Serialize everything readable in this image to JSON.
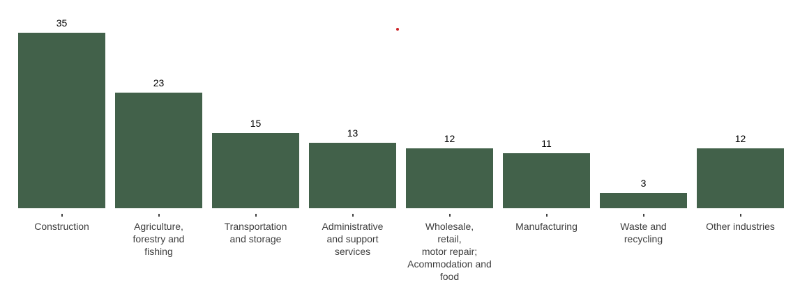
{
  "chart_data": {
    "type": "bar",
    "title": "",
    "xlabel": "",
    "ylabel": "",
    "ylim": [
      0,
      35
    ],
    "grid": false,
    "legend": "none",
    "value_labels_shown": true,
    "categories": [
      "Construction",
      "Agriculture,\nforestry and\nfishing",
      "Transportation\nand storage",
      "Administrative\nand support\nservices",
      "Wholesale,\nretail,\nmotor repair;\nAcommodation and\nfood",
      "Manufacturing",
      "Waste and\nrecycling",
      "Other industries"
    ],
    "values": [
      35,
      23,
      15,
      13,
      12,
      11,
      3,
      12
    ]
  },
  "colors": {
    "background": "#ffffff",
    "bar": "#42614a",
    "value_text": "#000000",
    "category_text": "#3d3d3d",
    "tick": "#404040",
    "stray_dot": "#cc2327"
  },
  "annotations": {
    "stray_dot": {
      "present": true,
      "color": "#cc2327"
    }
  }
}
